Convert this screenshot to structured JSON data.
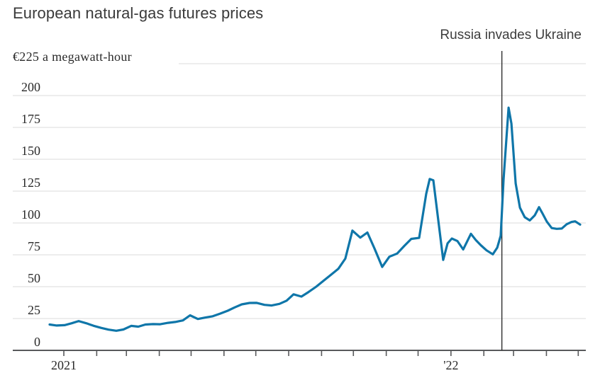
{
  "chart_data": {
    "type": "line",
    "title": "European natural-gas futures prices",
    "unit_label": "€225 a megawatt-hour",
    "ylabel": "€ a megawatt-hour",
    "ylim": [
      0,
      225
    ],
    "ytick_step": 25,
    "y_axis": {
      "label_values": [
        0,
        25,
        50,
        75,
        100,
        125,
        150,
        175,
        200
      ],
      "top_rule_value": 225
    },
    "x_axis": {
      "tick_days_since_2021_01_01": [
        0,
        31,
        59,
        90,
        120,
        151,
        181,
        212,
        243,
        273,
        304,
        334,
        365,
        396,
        424,
        455,
        485
      ],
      "year_labels": [
        {
          "day": 0,
          "text": "2021"
        },
        {
          "day": 365,
          "text": "'22"
        }
      ]
    },
    "event": {
      "label": "Russia invades Ukraine",
      "day": 413,
      "top_value": 235
    },
    "series": [
      {
        "name": "price",
        "points": [
          [
            -13.4,
            20.3
          ],
          [
            -6.7,
            19.5
          ],
          [
            0.7,
            19.8
          ],
          [
            7.4,
            21.3
          ],
          [
            14,
            23
          ],
          [
            21.4,
            21.2
          ],
          [
            28.1,
            19.3
          ],
          [
            35.4,
            17.6
          ],
          [
            42.1,
            16.3
          ],
          [
            49.5,
            15.4
          ],
          [
            56.2,
            16.4
          ],
          [
            63.5,
            19.2
          ],
          [
            70.2,
            18.6
          ],
          [
            76.9,
            20.3
          ],
          [
            84.2,
            20.6
          ],
          [
            90.9,
            20.5
          ],
          [
            98.3,
            21.6
          ],
          [
            105,
            22.3
          ],
          [
            112.3,
            23.5
          ],
          [
            119,
            27.5
          ],
          [
            126.4,
            24.6
          ],
          [
            133.1,
            25.7
          ],
          [
            140.4,
            26.8
          ],
          [
            147.1,
            28.7
          ],
          [
            154.5,
            31.1
          ],
          [
            161.1,
            33.7
          ],
          [
            167.8,
            36.1
          ],
          [
            175.2,
            37.2
          ],
          [
            181.9,
            37.3
          ],
          [
            189.2,
            35.7
          ],
          [
            195.9,
            35.2
          ],
          [
            203.3,
            36.5
          ],
          [
            210,
            39
          ],
          [
            216.6,
            44
          ],
          [
            224,
            42.2
          ],
          [
            230.7,
            45.8
          ],
          [
            238,
            50
          ],
          [
            244.7,
            54.5
          ],
          [
            251.4,
            59
          ],
          [
            258.8,
            64
          ],
          [
            265.4,
            72
          ],
          [
            272.1,
            94
          ],
          [
            279.5,
            88.5
          ],
          [
            286.2,
            92.5
          ],
          [
            292.9,
            80
          ],
          [
            300.2,
            65.5
          ],
          [
            306.9,
            73.5
          ],
          [
            314.3,
            76
          ],
          [
            321,
            82
          ],
          [
            327.6,
            87.5
          ],
          [
            335,
            88.3
          ],
          [
            341.7,
            123
          ],
          [
            345,
            134.5
          ],
          [
            348.4,
            133.5
          ],
          [
            357.7,
            71
          ],
          [
            361.8,
            84
          ],
          [
            365.8,
            87.8
          ],
          [
            371.1,
            85.8
          ],
          [
            376.5,
            79.2
          ],
          [
            383.8,
            91.5
          ],
          [
            388.5,
            86.5
          ],
          [
            393.2,
            82.5
          ],
          [
            398.5,
            78.5
          ],
          [
            404.5,
            75.4
          ],
          [
            408.6,
            80.6
          ],
          [
            411.9,
            90
          ],
          [
            414.6,
            134
          ],
          [
            419.3,
            190.5
          ],
          [
            422,
            178
          ],
          [
            426,
            131
          ],
          [
            430,
            112
          ],
          [
            434.6,
            104.5
          ],
          [
            439.3,
            102
          ],
          [
            444,
            106
          ],
          [
            448,
            112.4
          ],
          [
            451.3,
            107.5
          ],
          [
            455.4,
            101
          ],
          [
            460,
            96
          ],
          [
            464.7,
            95.4
          ],
          [
            469.4,
            95.6
          ],
          [
            474.1,
            99
          ],
          [
            478.7,
            100.8
          ],
          [
            482.1,
            101.3
          ],
          [
            486.8,
            98.7
          ]
        ]
      }
    ],
    "colors": {
      "line": "#0f76a9",
      "grid": "#e7e7e7",
      "axis": "#58595b",
      "event_line": "#2e2e2e",
      "title_text": "#3a3a3a",
      "tick_text": "#2a2a2a"
    },
    "legend": "none",
    "grid": "horizontal-only"
  }
}
